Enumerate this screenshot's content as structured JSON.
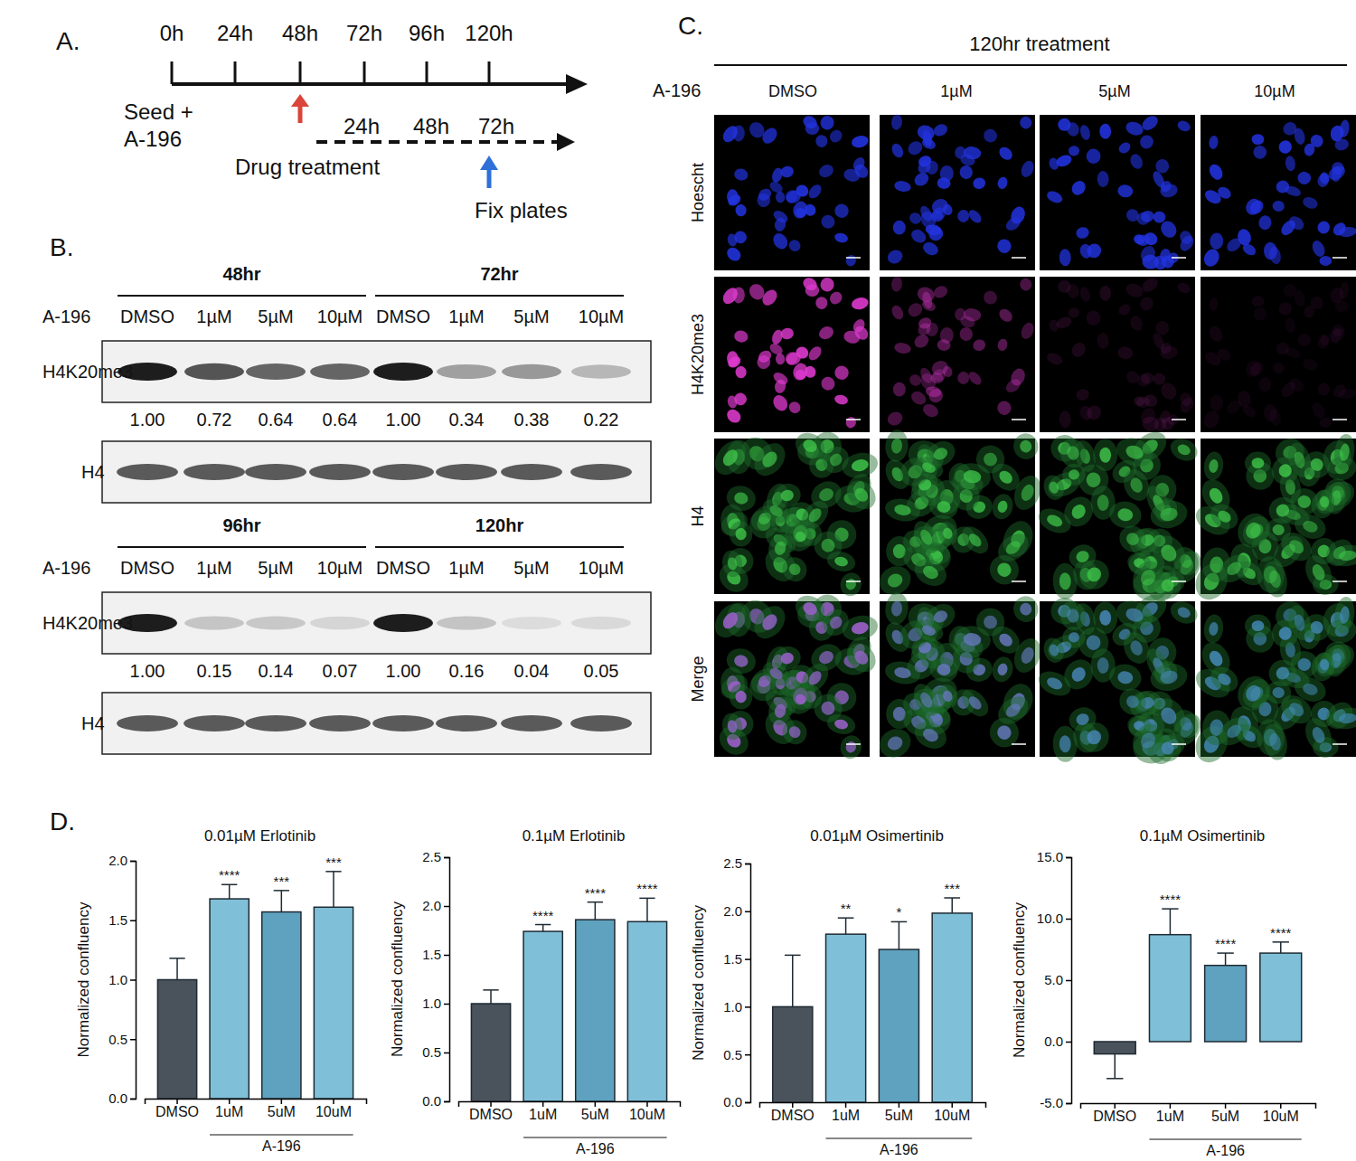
{
  "panel_a": {
    "label": "A.",
    "timeline": [
      "0h",
      "24h",
      "48h",
      "72h",
      "96h",
      "120h"
    ],
    "start_label": [
      "Seed +",
      "A-196"
    ],
    "drug_timeline": [
      "24h",
      "48h",
      "72h"
    ],
    "drug_label": "Drug treatment",
    "fix_label": "Fix plates"
  },
  "panel_b": {
    "label": "B.",
    "treatment_label": "A-196",
    "blots": [
      {
        "groups": [
          {
            "title": "48hr",
            "lanes": [
              "DMSO",
              "1µM",
              "5µM",
              "10µM"
            ]
          },
          {
            "title": "72hr",
            "lanes": [
              "DMSO",
              "1µM",
              "5µM",
              "10µM"
            ]
          }
        ],
        "target": "H4K20me3",
        "quantification": [
          "1.00",
          "0.72",
          "0.64",
          "0.64",
          "1.00",
          "0.34",
          "0.38",
          "0.22"
        ],
        "loading": "H4"
      },
      {
        "groups": [
          {
            "title": "96hr",
            "lanes": [
              "DMSO",
              "1µM",
              "5µM",
              "10µM"
            ]
          },
          {
            "title": "120hr",
            "lanes": [
              "DMSO",
              "1µM",
              "5µM",
              "10µM"
            ]
          }
        ],
        "target": "H4K20me3",
        "quantification": [
          "1.00",
          "0.15",
          "0.14",
          "0.07",
          "1.00",
          "0.16",
          "0.04",
          "0.05"
        ],
        "loading": "H4"
      }
    ]
  },
  "panel_c": {
    "label": "C.",
    "title": "120hr treatment",
    "treatment_label": "A-196",
    "columns": [
      "DMSO",
      "1µM",
      "5µM",
      "10µM"
    ],
    "rows": [
      "Hoescht",
      "H4K20me3",
      "H4",
      "Merge"
    ]
  },
  "panel_d": {
    "label": "D."
  },
  "chart_data": [
    {
      "type": "bar",
      "title": "0.01µM Erlotinib",
      "y_label": "Normalized confluency",
      "x_group_label": "A-196",
      "categories": [
        "DMSO",
        "1uM",
        "5uM",
        "10uM"
      ],
      "values": [
        1.0,
        1.68,
        1.57,
        1.61
      ],
      "errors": [
        0.18,
        0.12,
        0.18,
        0.3
      ],
      "significance": [
        null,
        "****",
        "***",
        "***"
      ],
      "colors": [
        "#4a525c",
        "#7fc0d8",
        "#5fa2bf",
        "#7fc0d8"
      ],
      "ylim": [
        0,
        2
      ],
      "yticks": [
        {
          "value": 0,
          "label": "0.0"
        },
        {
          "value": 0.5,
          "label": "0.5"
        },
        {
          "value": 1,
          "label": "1.0"
        },
        {
          "value": 1.5,
          "label": "1.5"
        },
        {
          "value": 2,
          "label": "2.0"
        }
      ]
    },
    {
      "type": "bar",
      "title": "0.1µM Erlotinib",
      "y_label": "Normalized confluency",
      "x_group_label": "A-196",
      "categories": [
        "DMSO",
        "1uM",
        "5uM",
        "10uM"
      ],
      "values": [
        1.0,
        1.74,
        1.86,
        1.84
      ],
      "errors": [
        0.14,
        0.07,
        0.18,
        0.24
      ],
      "significance": [
        null,
        "****",
        "****",
        "****"
      ],
      "colors": [
        "#4a525c",
        "#7fc0d8",
        "#5fa2bf",
        "#7fc0d8"
      ],
      "ylim": [
        0,
        2.5
      ],
      "yticks": [
        {
          "value": 0,
          "label": "0.0"
        },
        {
          "value": 0.5,
          "label": "0.5"
        },
        {
          "value": 1,
          "label": "1.0"
        },
        {
          "value": 1.5,
          "label": "1.5"
        },
        {
          "value": 2,
          "label": "2.0"
        },
        2.5
      ]
    },
    {
      "type": "bar",
      "title": "0.01µM Osimertinib",
      "y_label": "Normalized confluency",
      "x_group_label": "A-196",
      "categories": [
        "DMSO",
        "1uM",
        "5uM",
        "10uM"
      ],
      "values": [
        1.0,
        1.76,
        1.6,
        1.98
      ],
      "errors": [
        0.54,
        0.17,
        0.29,
        0.16
      ],
      "significance": [
        null,
        "**",
        "*",
        "***"
      ],
      "colors": [
        "#4a525c",
        "#7fc0d8",
        "#5fa2bf",
        "#7fc0d8"
      ],
      "ylim": [
        0,
        2.5
      ],
      "yticks": [
        {
          "value": 0,
          "label": "0.0"
        },
        {
          "value": 0.5,
          "label": "0.5"
        },
        {
          "value": 1,
          "label": "1.0"
        },
        {
          "value": 1.5,
          "label": "1.5"
        },
        {
          "value": 2,
          "label": "2.0"
        },
        2.5
      ]
    },
    {
      "type": "bar",
      "title": "0.1µM Osimertinib",
      "y_label": "Normalized confluency",
      "x_group_label": "A-196",
      "categories": [
        "DMSO",
        "1uM",
        "5uM",
        "10uM"
      ],
      "values": [
        -1.0,
        8.7,
        6.2,
        7.2
      ],
      "errors": [
        2.0,
        2.1,
        1.0,
        0.9
      ],
      "significance": [
        null,
        "****",
        "****",
        "****"
      ],
      "colors": [
        "#4a525c",
        "#7fc0d8",
        "#5fa2bf",
        "#7fc0d8"
      ],
      "ylim": [
        -5,
        15
      ],
      "yticks": [
        {
          "value": -5,
          "label": "-5.0"
        },
        {
          "value": 0,
          "label": "0.0"
        },
        {
          "value": 5,
          "label": "5.0"
        },
        {
          "value": 10,
          "label": "10.0"
        },
        {
          "value": 15,
          "label": "15.0"
        }
      ]
    }
  ]
}
